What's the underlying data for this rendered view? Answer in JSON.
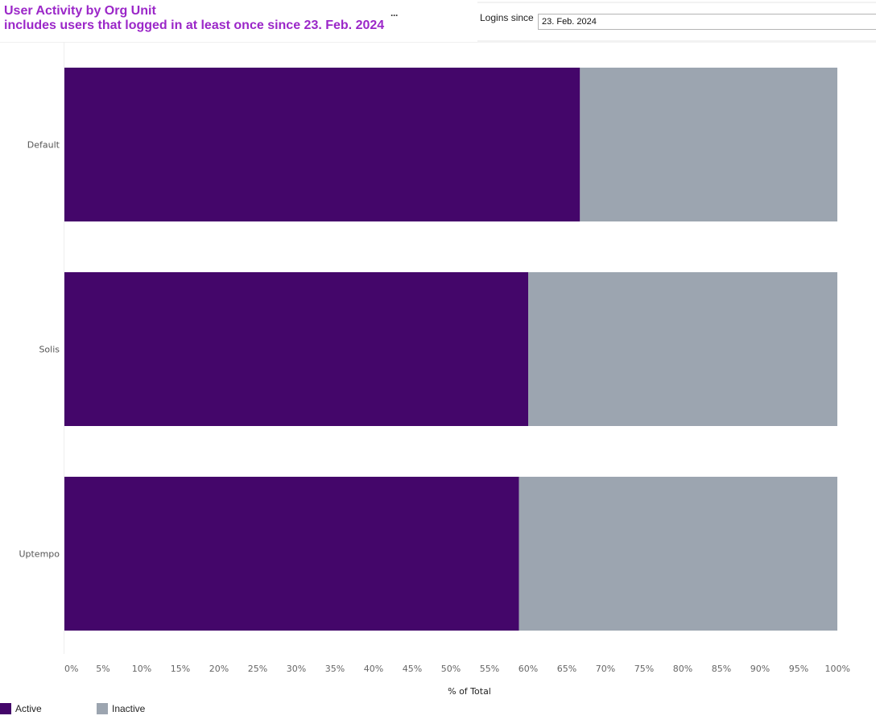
{
  "header": {
    "title_line1": "User Activity by Org Unit",
    "title_line2": "includes users that logged in at least once since 23. Feb. 2024",
    "title_color": "#9b27c8",
    "more_label": "···"
  },
  "filter": {
    "label": "Logins since",
    "value": "23. Feb. 2024"
  },
  "legend": {
    "items": [
      {
        "label": "Active",
        "color": "#44066a"
      },
      {
        "label": "Inactive",
        "color": "#9ca5b0"
      }
    ]
  },
  "chart_data": {
    "type": "bar",
    "orientation": "horizontal",
    "stacked": true,
    "categories": [
      "Default",
      "Solis",
      "Uptempo"
    ],
    "series": [
      {
        "name": "Active",
        "values": [
          66.7,
          60.0,
          58.8
        ],
        "color": "#44066a"
      },
      {
        "name": "Inactive",
        "values": [
          33.3,
          40.0,
          41.2
        ],
        "color": "#9ca5b0"
      }
    ],
    "xlabel": "% of Total",
    "ylabel": "",
    "xlim": [
      0,
      100
    ],
    "x_ticks": [
      "0%",
      "5%",
      "10%",
      "15%",
      "20%",
      "25%",
      "30%",
      "35%",
      "40%",
      "45%",
      "50%",
      "55%",
      "60%",
      "65%",
      "70%",
      "75%",
      "80%",
      "85%",
      "90%",
      "95%",
      "100%"
    ],
    "grid": false,
    "legend_position": "bottom-left"
  }
}
